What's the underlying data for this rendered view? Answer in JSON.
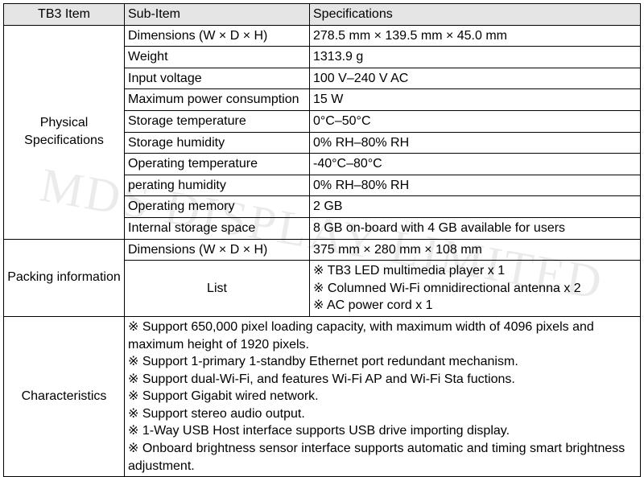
{
  "watermark": "MDS DISPLAY LIMITED",
  "header": {
    "c1": "TB3 Item",
    "c2": "Sub-Item",
    "c3": "Specifications"
  },
  "phys": {
    "label": "Physical Specifications",
    "rows": [
      {
        "sub": "Dimensions (W × D × H)",
        "spec": "278.5 mm × 139.5 mm × 45.0 mm"
      },
      {
        "sub": "Weight",
        "spec": "1313.9 g"
      },
      {
        "sub": "Input voltage",
        "spec": "100 V–240 V AC"
      },
      {
        "sub": "Maximum power consumption",
        "spec": "15 W"
      },
      {
        "sub": "Storage temperature",
        "spec": "0°C–50°C"
      },
      {
        "sub": "Storage humidity",
        "spec": "0% RH–80% RH"
      },
      {
        "sub": "Operating temperature",
        "spec": "-40°C–80°C"
      },
      {
        "sub": "perating humidity",
        "spec": "0% RH–80% RH"
      },
      {
        "sub": "Operating memory",
        "spec": "2 GB"
      },
      {
        "sub": "Internal storage space",
        "spec": "8 GB on-board with 4 GB available for users"
      }
    ]
  },
  "pack": {
    "label": "Packing information",
    "dim_sub": "Dimensions (W × D × H)",
    "dim_spec": "375 mm × 280 mm × 108 mm",
    "list_sub": "List",
    "list_spec": "※ TB3 LED multimedia player x 1\n※ Columned Wi-Fi omnidirectional antenna x 2\n※ AC power cord x 1"
  },
  "chars": {
    "label": "Characteristics",
    "body": "※ Support 650,000 pixel loading capacity, with maximum width of 4096 pixels and maximum height of 1920 pixels.\n※ Support 1-primary 1-standby Ethernet port redundant mechanism.\n※ Support dual-Wi-Fi, and features Wi-Fi AP and Wi-Fi Sta fuctions.\n※ Support Gigabit wired network.\n※ Support stereo audio output.\n※ 1-Way USB Host interface supports USB drive importing display.\n※ Onboard brightness sensor interface supports automatic and timing smart brightness adjustment."
  }
}
